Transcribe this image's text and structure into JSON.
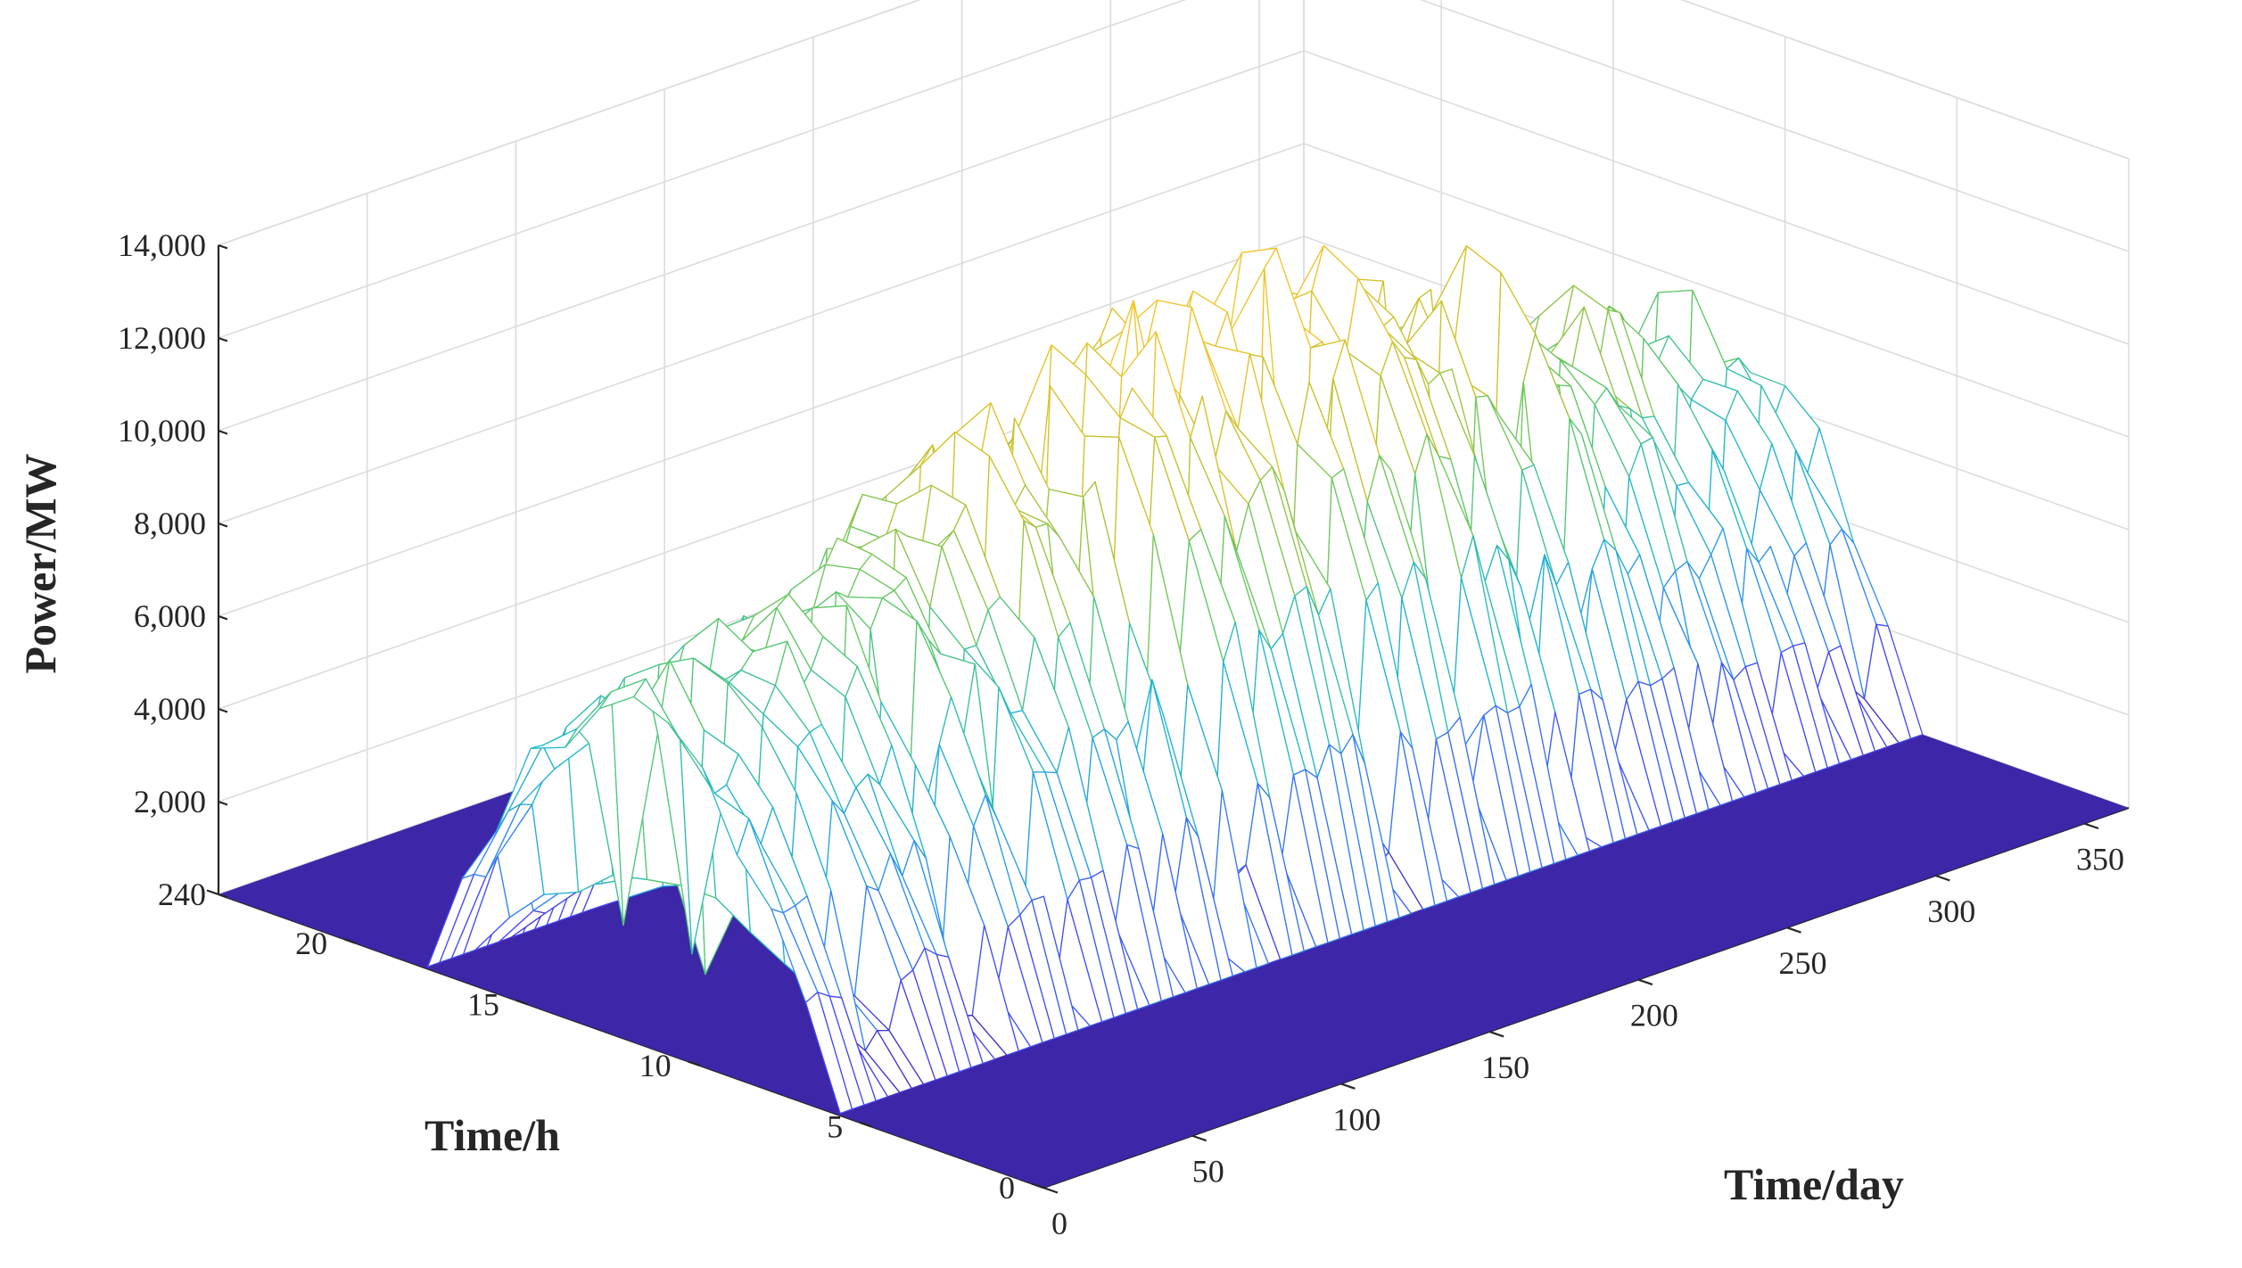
{
  "chart_data": {
    "type": "surface",
    "title": "",
    "xlabel": "Time/day",
    "ylabel": "Time/h",
    "zlabel": "Power/MW",
    "xlim": [
      0,
      365
    ],
    "ylim": [
      0,
      24
    ],
    "zlim": [
      0,
      14000
    ],
    "x_ticks": [
      0,
      50,
      100,
      150,
      200,
      250,
      300,
      350
    ],
    "y_ticks": [
      0,
      5,
      10,
      15,
      20,
      24
    ],
    "z_ticks": [
      0,
      2000,
      4000,
      6000,
      8000,
      10000,
      12000,
      14000
    ],
    "z_tick_labels": [
      "0",
      "2,000",
      "4,000",
      "6,000",
      "8,000",
      "10,000",
      "12,000",
      "14,000"
    ],
    "grid": true,
    "colormap": [
      "#3e26a8",
      "#4743f7",
      "#2d8ef0",
      "#1db8cf",
      "#5bc866",
      "#c7c12a",
      "#f5c42a"
    ],
    "daylight_hours": [
      6,
      18
    ],
    "peak_power_summer": 12200,
    "peak_power_winter": 7600
  }
}
